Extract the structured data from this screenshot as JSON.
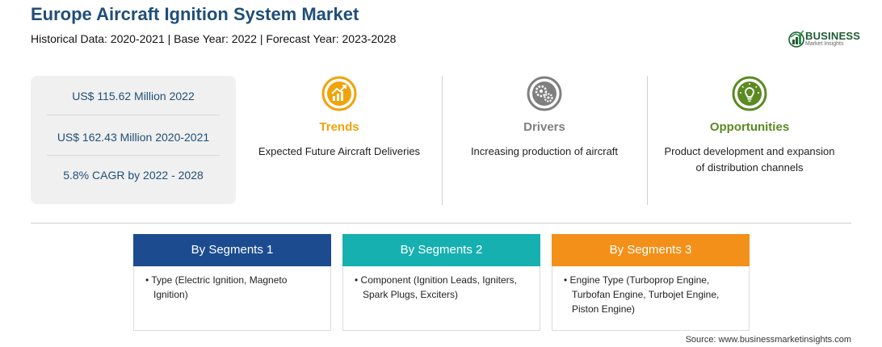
{
  "header": {
    "title": "Europe Aircraft Ignition System Market",
    "subtitle": "Historical Data: 2020-2021 | Base Year: 2022 | Forecast Year: 2023-2028"
  },
  "logo": {
    "name": "BUSINESS",
    "tagline": "Market Insights",
    "color": "#1e5b33"
  },
  "stats": [
    "US$ 115.62 Million 2022",
    "US$ 162.43 Million 2020-2021",
    "5.8% CAGR by 2022 - 2028"
  ],
  "pillars": {
    "trends": {
      "title": "Trends",
      "text": "Expected Future Aircraft Deliveries",
      "color": "#f0a30a",
      "icon": "chart-trend-icon"
    },
    "drivers": {
      "title": "Drivers",
      "text": "Increasing production of aircraft",
      "color": "#7f7f7f",
      "icon": "gears-icon"
    },
    "opportunities": {
      "title": "Opportunities",
      "text_line1": "Product development and expansion",
      "text_line2": "of distribution channels",
      "color": "#5b8a23",
      "icon": "lightbulb-icon"
    }
  },
  "segments": [
    {
      "title": "By Segments 1",
      "color": "#1c4c8f",
      "body": [
        "• Type (Electric Ignition, Magneto",
        "Ignition)"
      ]
    },
    {
      "title": "By Segments 2",
      "color": "#17b0b0",
      "body": [
        "• Component (Ignition Leads, Igniters,",
        "Spark Plugs, Exciters)"
      ]
    },
    {
      "title": "By Segments 3",
      "color": "#f39019",
      "body": [
        "• Engine Type (Turboprop Engine,",
        "Turbofan Engine, Turbojet Engine,",
        "Piston Engine)"
      ]
    }
  ],
  "source": "Source: www.businessmarketinsights.com"
}
